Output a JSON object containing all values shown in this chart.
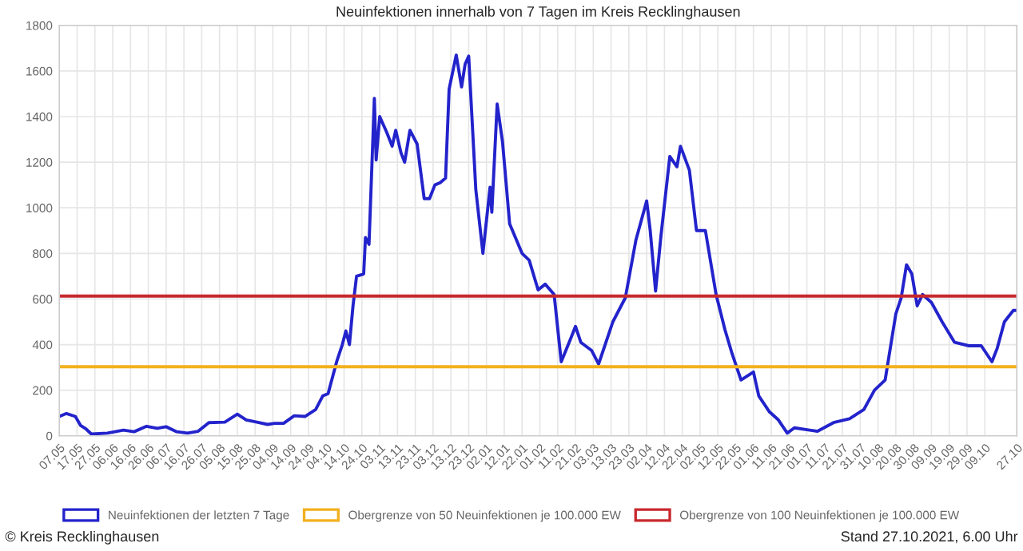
{
  "chart_data": {
    "type": "line",
    "title": "Neuinfektionen innerhalb von 7 Tagen im Kreis Recklinghausen",
    "x": [
      "2020-05-07",
      "2020-05-11",
      "2020-05-16",
      "2020-05-19",
      "2020-05-22",
      "2020-05-25",
      "2020-06-03",
      "2020-06-12",
      "2020-06-18",
      "2020-06-25",
      "2020-07-01",
      "2020-07-06",
      "2020-07-12",
      "2020-07-18",
      "2020-07-24",
      "2020-07-30",
      "2020-08-08",
      "2020-08-15",
      "2020-08-20",
      "2020-08-26",
      "2020-09-01",
      "2020-09-05",
      "2020-09-10",
      "2020-09-16",
      "2020-09-22",
      "2020-09-28",
      "2020-10-02",
      "2020-10-05",
      "2020-10-10",
      "2020-10-13",
      "2020-10-15",
      "2020-10-17",
      "2020-10-19",
      "2020-10-21",
      "2020-10-25",
      "2020-10-26",
      "2020-10-28",
      "2020-10-31",
      "2020-11-01",
      "2020-11-03",
      "2020-11-07",
      "2020-11-10",
      "2020-11-12",
      "2020-11-15",
      "2020-11-17",
      "2020-11-20",
      "2020-11-24",
      "2020-11-28",
      "2020-12-01",
      "2020-12-04",
      "2020-12-07",
      "2020-12-10",
      "2020-12-12",
      "2020-12-16",
      "2020-12-19",
      "2020-12-21",
      "2020-12-23",
      "2020-12-27",
      "2020-12-31",
      "2021-01-04",
      "2021-01-05",
      "2021-01-08",
      "2021-01-11",
      "2021-01-15",
      "2021-01-22",
      "2021-01-26",
      "2021-01-31",
      "2021-02-04",
      "2021-02-09",
      "2021-02-13",
      "2021-02-18",
      "2021-02-21",
      "2021-02-24",
      "2021-03-02",
      "2021-03-06",
      "2021-03-14",
      "2021-03-21",
      "2021-03-27",
      "2021-04-02",
      "2021-04-04",
      "2021-04-07",
      "2021-04-10",
      "2021-04-15",
      "2021-04-19",
      "2021-04-21",
      "2021-04-26",
      "2021-04-30",
      "2021-05-05",
      "2021-05-11",
      "2021-05-16",
      "2021-05-20",
      "2021-05-25",
      "2021-06-01",
      "2021-06-04",
      "2021-06-10",
      "2021-06-15",
      "2021-06-20",
      "2021-06-24",
      "2021-07-07",
      "2021-07-16",
      "2021-07-25",
      "2021-08-02",
      "2021-08-08",
      "2021-08-14",
      "2021-08-20",
      "2021-08-23",
      "2021-08-26",
      "2021-08-29",
      "2021-09-01",
      "2021-09-04",
      "2021-09-09",
      "2021-09-15",
      "2021-09-22",
      "2021-09-30",
      "2021-10-07",
      "2021-10-13",
      "2021-10-16",
      "2021-10-20",
      "2021-10-25",
      "2021-10-27"
    ],
    "series": [
      {
        "name": "Neuinfektionen der letzten 7 Tage",
        "color": "#2323cc",
        "values": [
          85,
          98,
          85,
          45,
          30,
          8,
          12,
          25,
          18,
          42,
          33,
          40,
          18,
          12,
          20,
          58,
          60,
          95,
          70,
          60,
          50,
          55,
          55,
          88,
          85,
          115,
          175,
          185,
          330,
          400,
          460,
          400,
          570,
          700,
          710,
          870,
          840,
          1480,
          1210,
          1400,
          1330,
          1270,
          1340,
          1240,
          1200,
          1340,
          1280,
          1040,
          1040,
          1100,
          1110,
          1130,
          1520,
          1670,
          1530,
          1630,
          1665,
          1080,
          800,
          1090,
          980,
          1455,
          1290,
          930,
          800,
          770,
          640,
          665,
          620,
          325,
          420,
          480,
          410,
          375,
          315,
          500,
          605,
          860,
          1030,
          900,
          635,
          875,
          1225,
          1180,
          1270,
          1165,
          900,
          900,
          620,
          465,
          360,
          245,
          280,
          175,
          105,
          70,
          12,
          35,
          20,
          58,
          75,
          115,
          200,
          245,
          535,
          605,
          750,
          710,
          570,
          620,
          585,
          500,
          410,
          395,
          395,
          325,
          385,
          500,
          550,
          550
        ]
      }
    ],
    "ref_lines": [
      {
        "axis": "y",
        "value": 303,
        "label": "Obergrenze von 50 Neuinfektionen je 100.000 EW",
        "color": "#f2b01e"
      },
      {
        "axis": "y",
        "value": 613,
        "label": "Obergrenze von 100 Neuinfektionen je 100.000 EW",
        "color": "#c8282d"
      }
    ],
    "xlim": [
      "2020-05-07",
      "2021-10-27"
    ],
    "xticks": [
      {
        "value": "2020-05-07",
        "label": "07.05"
      },
      {
        "value": "2020-05-17",
        "label": "17.05"
      },
      {
        "value": "2020-05-27",
        "label": "27.05"
      },
      {
        "value": "2020-06-06",
        "label": "06.06"
      },
      {
        "value": "2020-06-16",
        "label": "16.06"
      },
      {
        "value": "2020-06-26",
        "label": "26.06"
      },
      {
        "value": "2020-07-06",
        "label": "06.07"
      },
      {
        "value": "2020-07-16",
        "label": "16.07"
      },
      {
        "value": "2020-07-26",
        "label": "26.07"
      },
      {
        "value": "2020-08-05",
        "label": "05.08"
      },
      {
        "value": "2020-08-15",
        "label": "15.08"
      },
      {
        "value": "2020-08-25",
        "label": "25.08"
      },
      {
        "value": "2020-09-04",
        "label": "04.09"
      },
      {
        "value": "2020-09-14",
        "label": "14.09"
      },
      {
        "value": "2020-09-24",
        "label": "24.09"
      },
      {
        "value": "2020-10-04",
        "label": "04.10"
      },
      {
        "value": "2020-10-14",
        "label": "14.10"
      },
      {
        "value": "2020-10-24",
        "label": "24.10"
      },
      {
        "value": "2020-11-03",
        "label": "03.11"
      },
      {
        "value": "2020-11-13",
        "label": "13.11"
      },
      {
        "value": "2020-11-23",
        "label": "23.11"
      },
      {
        "value": "2020-12-03",
        "label": "03.12"
      },
      {
        "value": "2020-12-13",
        "label": "13.12"
      },
      {
        "value": "2020-12-23",
        "label": "23.12"
      },
      {
        "value": "2021-01-02",
        "label": "02.01"
      },
      {
        "value": "2021-01-12",
        "label": "12.01"
      },
      {
        "value": "2021-01-22",
        "label": "22.01"
      },
      {
        "value": "2021-02-01",
        "label": "01.02"
      },
      {
        "value": "2021-02-11",
        "label": "11.02"
      },
      {
        "value": "2021-02-21",
        "label": "21.02"
      },
      {
        "value": "2021-03-03",
        "label": "03.03"
      },
      {
        "value": "2021-03-13",
        "label": "13.03"
      },
      {
        "value": "2021-03-23",
        "label": "23.03"
      },
      {
        "value": "2021-04-02",
        "label": "02.04"
      },
      {
        "value": "2021-04-12",
        "label": "12.04"
      },
      {
        "value": "2021-04-22",
        "label": "22.04"
      },
      {
        "value": "2021-05-02",
        "label": "02.05"
      },
      {
        "value": "2021-05-12",
        "label": "12.05"
      },
      {
        "value": "2021-05-22",
        "label": "22.05"
      },
      {
        "value": "2021-06-01",
        "label": "01.06"
      },
      {
        "value": "2021-06-11",
        "label": "11.06"
      },
      {
        "value": "2021-06-21",
        "label": "21.06"
      },
      {
        "value": "2021-07-01",
        "label": "01.07"
      },
      {
        "value": "2021-07-11",
        "label": "11.07"
      },
      {
        "value": "2021-07-21",
        "label": "21.07"
      },
      {
        "value": "2021-07-31",
        "label": "31.07"
      },
      {
        "value": "2021-08-10",
        "label": "10.08"
      },
      {
        "value": "2021-08-20",
        "label": "20.08"
      },
      {
        "value": "2021-08-30",
        "label": "30.08"
      },
      {
        "value": "2021-09-09",
        "label": "09.09"
      },
      {
        "value": "2021-09-19",
        "label": "19.09"
      },
      {
        "value": "2021-09-29",
        "label": "29.09"
      },
      {
        "value": "2021-10-09",
        "label": "09.10"
      },
      {
        "value": "2021-10-27",
        "label": "27.10"
      }
    ],
    "ylim": [
      0,
      1800
    ],
    "yticks": [
      0,
      200,
      400,
      600,
      800,
      1000,
      1200,
      1400,
      1600,
      1800
    ],
    "grid": true,
    "legend": "bottom",
    "marker": "none",
    "line_style": "solid",
    "annotations": [
      "© Kreis Recklinghausen",
      "Stand 27.10.2021, 6.00 Uhr"
    ]
  }
}
